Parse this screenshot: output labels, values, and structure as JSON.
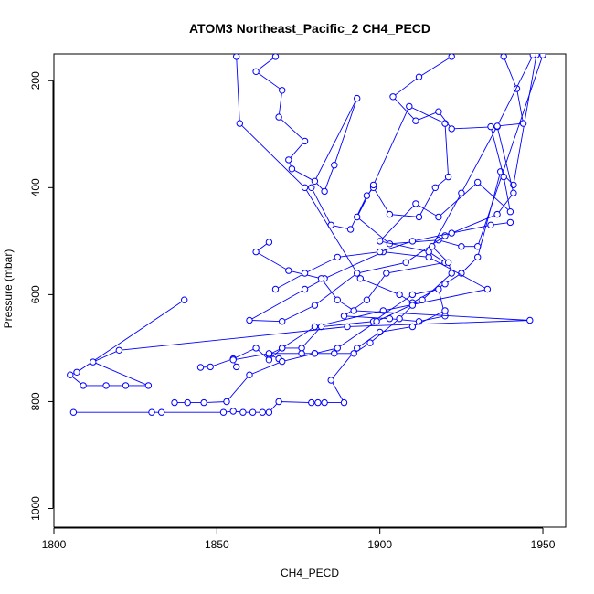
{
  "chart_data": {
    "type": "line",
    "title": "ATOM3 Northeast_Pacific_2 CH4_PECD",
    "xlabel": "CH4_PECD",
    "ylabel": "Pressure (mbar)",
    "xlim": [
      1800,
      1957
    ],
    "ylim": [
      1035,
      150
    ],
    "y_reversed": true,
    "grid": false,
    "legend": "none",
    "x_ticks": [
      "1800",
      "1850",
      "1900",
      "1950"
    ],
    "y_ticks": [
      "200",
      "400",
      "600",
      "800",
      "1000"
    ],
    "series_color": "#0000ff",
    "series": [
      {
        "points": [
          [
            1868,
            155
          ],
          [
            1862,
            183
          ],
          [
            1870,
            218
          ],
          [
            1869,
            268
          ],
          [
            1877,
            313
          ],
          [
            1872,
            348
          ],
          [
            1873,
            365
          ],
          [
            1880,
            388
          ],
          [
            1883,
            407
          ],
          [
            1886,
            358
          ],
          [
            1893,
            233
          ],
          [
            1879,
            400
          ],
          [
            1885,
            470
          ],
          [
            1891,
            478
          ],
          [
            1896,
            415
          ],
          [
            1898,
            400
          ],
          [
            1903,
            450
          ],
          [
            1912,
            455
          ],
          [
            1917,
            400
          ],
          [
            1921,
            380
          ],
          [
            1920,
            280
          ],
          [
            1909,
            248
          ],
          [
            1898,
            395
          ],
          [
            1893,
            455
          ],
          [
            1903,
            505
          ],
          [
            1918,
            498
          ],
          [
            1925,
            510
          ],
          [
            1930,
            510
          ],
          [
            1950,
            152
          ]
        ]
      },
      {
        "points": [
          [
            1856,
            155
          ],
          [
            1857,
            280
          ],
          [
            1877,
            400
          ],
          [
            1894,
            570
          ],
          [
            1906,
            600
          ],
          [
            1910,
            615
          ],
          [
            1920,
            580
          ],
          [
            1925,
            560
          ],
          [
            1930,
            530
          ],
          [
            1937,
            370
          ],
          [
            1941,
            395
          ],
          [
            1948,
            152
          ]
        ]
      },
      {
        "points": [
          [
            1922,
            155
          ],
          [
            1912,
            193
          ],
          [
            1904,
            230
          ],
          [
            1911,
            275
          ],
          [
            1918,
            258
          ],
          [
            1922,
            290
          ],
          [
            1936,
            286
          ],
          [
            1941,
            410
          ],
          [
            1936,
            450
          ],
          [
            1920,
            490
          ],
          [
            1908,
            540
          ],
          [
            1893,
            560
          ],
          [
            1880,
            620
          ],
          [
            1870,
            650
          ],
          [
            1860,
            648
          ],
          [
            1877,
            590
          ],
          [
            1883,
            570
          ],
          [
            1901,
            520
          ],
          [
            1915,
            530
          ],
          [
            1933,
            590
          ],
          [
            1901,
            630
          ],
          [
            1880,
            660
          ],
          [
            1870,
            700
          ],
          [
            1866,
            722
          ],
          [
            1862,
            700
          ],
          [
            1855,
            720
          ],
          [
            1848,
            735
          ],
          [
            1845,
            736
          ]
        ]
      },
      {
        "points": [
          [
            1938,
            155
          ],
          [
            1942,
            215
          ],
          [
            1944,
            280
          ],
          [
            1934,
            286
          ],
          [
            1938,
            380
          ],
          [
            1940,
            445
          ],
          [
            1930,
            390
          ],
          [
            1918,
            455
          ],
          [
            1911,
            430
          ],
          [
            1900,
            500
          ],
          [
            1915,
            520
          ],
          [
            1920,
            540
          ],
          [
            1902,
            560
          ],
          [
            1896,
            610
          ],
          [
            1889,
            640
          ],
          [
            1903,
            645
          ],
          [
            1912,
            650
          ],
          [
            1920,
            640
          ],
          [
            1918,
            590
          ],
          [
            1910,
            600
          ],
          [
            1898,
            650
          ],
          [
            1882,
            660
          ],
          [
            1876,
            700
          ],
          [
            1870,
            700
          ],
          [
            1866,
            712
          ],
          [
            1869,
            720
          ]
        ]
      },
      {
        "points": [
          [
            1947,
            152
          ],
          [
            1936,
            285
          ],
          [
            1925,
            410
          ],
          [
            1916,
            510
          ],
          [
            1921,
            540
          ],
          [
            1922,
            560
          ],
          [
            1913,
            610
          ],
          [
            1899,
            650
          ],
          [
            1887,
            700
          ],
          [
            1880,
            710
          ],
          [
            1870,
            725
          ],
          [
            1860,
            750
          ],
          [
            1853,
            800
          ],
          [
            1846,
            802
          ],
          [
            1841,
            802
          ],
          [
            1837,
            802
          ]
        ]
      },
      {
        "points": [
          [
            1840,
            610
          ],
          [
            1807,
            745
          ],
          [
            1805,
            750
          ],
          [
            1809,
            770
          ],
          [
            1816,
            770
          ],
          [
            1822,
            770
          ],
          [
            1829,
            770
          ],
          [
            1812,
            726
          ],
          [
            1820,
            704
          ],
          [
            1890,
            660
          ],
          [
            1946,
            648
          ],
          [
            1892,
            630
          ],
          [
            1887,
            610
          ],
          [
            1882,
            570
          ],
          [
            1872,
            555
          ],
          [
            1862,
            520
          ],
          [
            1866,
            502
          ]
        ]
      },
      {
        "points": [
          [
            1806,
            820
          ],
          [
            1830,
            820
          ],
          [
            1833,
            820
          ],
          [
            1852,
            820
          ],
          [
            1855,
            818
          ],
          [
            1858,
            820
          ],
          [
            1861,
            820
          ],
          [
            1864,
            820
          ],
          [
            1866,
            820
          ],
          [
            1869,
            800
          ],
          [
            1879,
            802
          ],
          [
            1881,
            802
          ],
          [
            1883,
            802
          ],
          [
            1889,
            802
          ],
          [
            1885,
            760
          ],
          [
            1893,
            700
          ],
          [
            1900,
            670
          ],
          [
            1910,
            660
          ],
          [
            1920,
            630
          ]
        ]
      },
      {
        "points": [
          [
            1856,
            735
          ],
          [
            1855,
            722
          ],
          [
            1866,
            710
          ],
          [
            1876,
            710
          ],
          [
            1880,
            710
          ],
          [
            1886,
            710
          ],
          [
            1892,
            710
          ],
          [
            1897,
            690
          ],
          [
            1906,
            645
          ],
          [
            1910,
            620
          ]
        ]
      },
      {
        "points": [
          [
            1868,
            590
          ],
          [
            1877,
            560
          ],
          [
            1887,
            530
          ],
          [
            1900,
            520
          ],
          [
            1910,
            500
          ],
          [
            1922,
            485
          ],
          [
            1934,
            470
          ],
          [
            1940,
            465
          ]
        ]
      }
    ]
  }
}
